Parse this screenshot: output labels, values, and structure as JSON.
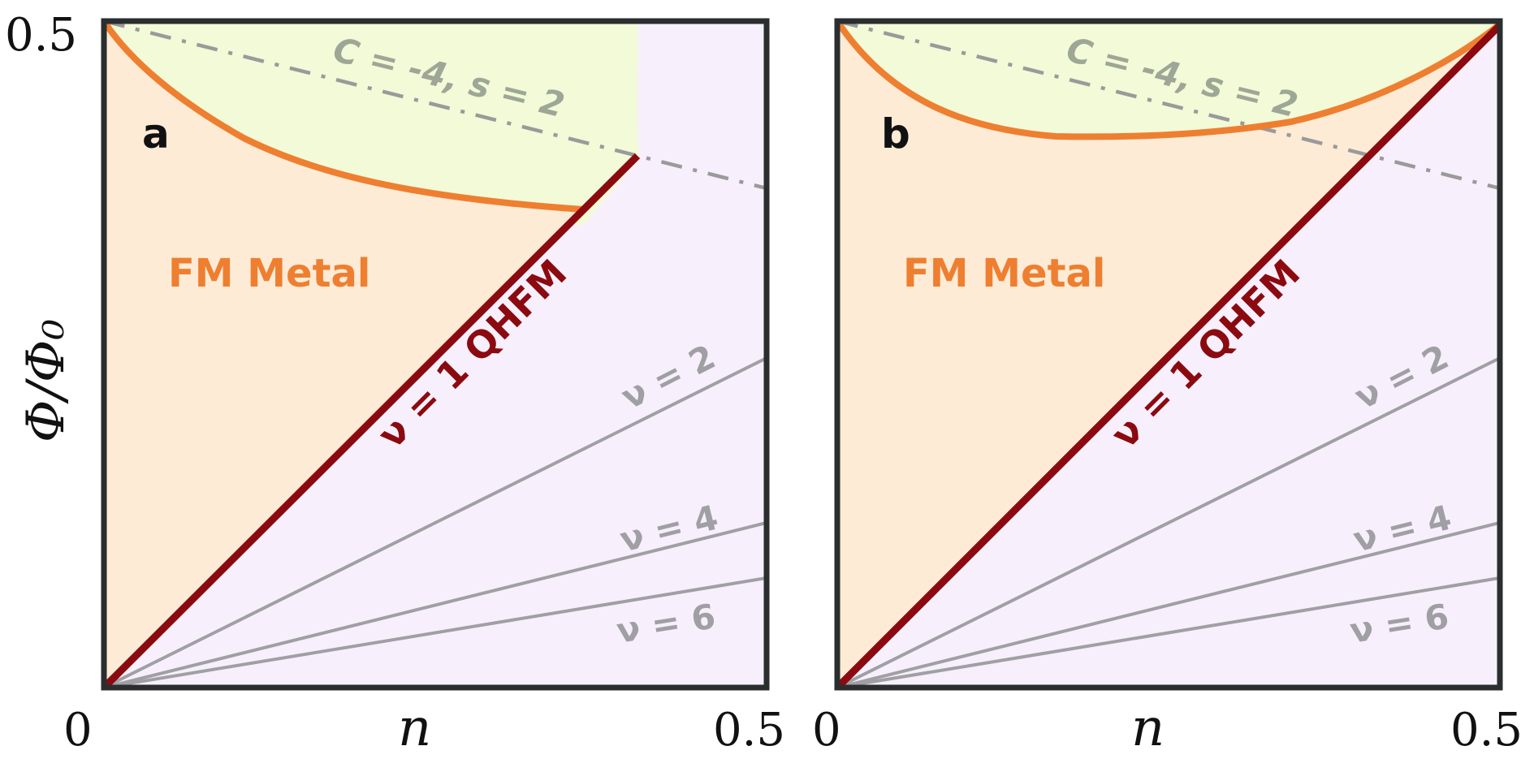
{
  "axes": {
    "y_label": "Φ/Φ₀",
    "x_label": "n",
    "y_tick_top": "0.5",
    "x_tick_left": "0",
    "x_tick_right": "0.5",
    "x_tick_left_b": "0",
    "x_tick_right_b": "0.5"
  },
  "panels": [
    {
      "letter": "a",
      "fm_label": "FM Metal",
      "qhfm_label": "ν = 1 QHFM",
      "nu2_label": "ν = 2",
      "nu4_label": "ν = 4",
      "nu6_label": "ν = 6",
      "chern_label": "C = -4, s = 2"
    },
    {
      "letter": "b",
      "fm_label": "FM Metal",
      "qhfm_label": "ν = 1 QHFM",
      "nu2_label": "ν = 2",
      "nu4_label": "ν = 4",
      "nu6_label": "ν = 6",
      "chern_label": "C = -4, s = 2"
    }
  ],
  "colors": {
    "fm_region": "#fdebd6",
    "chern_region": "#f2fad8",
    "qh_region": "#f7f0fc",
    "qhfm_line": "#8b0a10",
    "boundary_line": "#ee7f30",
    "landau_lines": "#a0a0a4",
    "chern_line": "#9a9a9a",
    "frame": "#2a2e2e"
  }
}
